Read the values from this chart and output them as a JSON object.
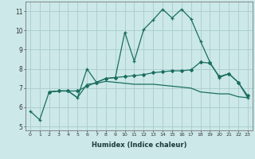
{
  "xlabel": "Humidex (Indice chaleur)",
  "xlim": [
    -0.5,
    23.5
  ],
  "ylim": [
    4.8,
    11.5
  ],
  "yticks": [
    5,
    6,
    7,
    8,
    9,
    10,
    11
  ],
  "xticks": [
    0,
    1,
    2,
    3,
    4,
    5,
    6,
    7,
    8,
    9,
    10,
    11,
    12,
    13,
    14,
    15,
    16,
    17,
    18,
    19,
    20,
    21,
    22,
    23
  ],
  "bg_color": "#cce8e8",
  "grid_color": "#aacccc",
  "line_color": "#1a6e60",
  "series": [
    {
      "x": [
        0,
        1,
        2,
        3,
        4,
        5,
        6,
        7,
        8,
        9,
        10,
        11,
        12,
        13,
        14,
        15,
        16,
        17,
        18,
        19,
        20,
        21,
        22,
        23
      ],
      "y": [
        5.8,
        5.35,
        6.8,
        6.85,
        6.85,
        6.5,
        8.0,
        7.3,
        7.5,
        7.55,
        9.9,
        8.4,
        10.05,
        10.55,
        11.1,
        10.65,
        11.1,
        10.6,
        9.45,
        8.35,
        7.55,
        7.75,
        7.3,
        6.5
      ],
      "marker": "+",
      "markersize": 3.5,
      "lw": 0.9
    },
    {
      "x": [
        2,
        3,
        4,
        5,
        6,
        7,
        8,
        9,
        10,
        11,
        12,
        13,
        14,
        15,
        16,
        17,
        18,
        19,
        20,
        21,
        22,
        23
      ],
      "y": [
        6.8,
        6.85,
        6.85,
        6.85,
        7.1,
        7.3,
        7.5,
        7.55,
        7.6,
        7.65,
        7.7,
        7.8,
        7.85,
        7.9,
        7.9,
        7.95,
        8.35,
        8.3,
        7.6,
        7.75,
        7.3,
        6.6
      ],
      "marker": "D",
      "markersize": 2.0,
      "lw": 0.9
    },
    {
      "x": [
        2,
        3,
        4,
        5,
        6,
        7,
        8,
        9,
        10,
        11,
        12,
        13,
        14,
        15,
        16,
        17,
        18,
        19,
        20,
        21,
        22,
        23
      ],
      "y": [
        6.8,
        6.85,
        6.85,
        6.5,
        7.2,
        7.25,
        7.35,
        7.3,
        7.25,
        7.2,
        7.2,
        7.2,
        7.15,
        7.1,
        7.05,
        7.0,
        6.8,
        6.75,
        6.7,
        6.7,
        6.55,
        6.5
      ],
      "marker": null,
      "markersize": 0,
      "lw": 0.9
    }
  ]
}
